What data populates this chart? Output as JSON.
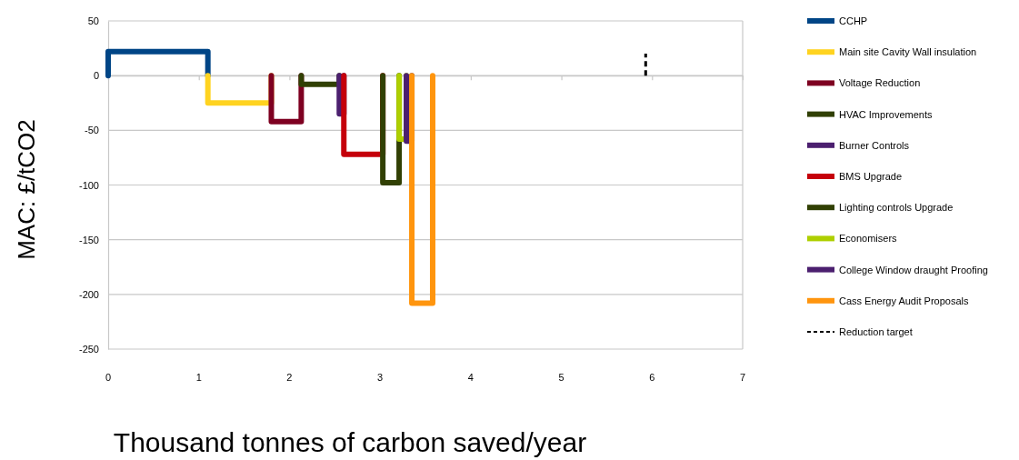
{
  "chart_data": {
    "type": "line",
    "xlabel": "Thousand tonnes of carbon saved/year",
    "ylabel": "MAC: £/tCO2",
    "xlim": [
      0,
      7
    ],
    "xticks": [
      0,
      1,
      2,
      3,
      4,
      5,
      6,
      7
    ],
    "ylim": [
      -250,
      50
    ],
    "yticks": [
      -250,
      -200,
      -150,
      -100,
      -50,
      0,
      50
    ],
    "grid": "y",
    "legend": "right",
    "line_style": "solid",
    "marker": "none",
    "series": [
      {
        "name": "CCHP",
        "color": "#004586",
        "x": [
          0,
          0,
          1.1,
          1.1
        ],
        "values": [
          0,
          22,
          22,
          0
        ]
      },
      {
        "name": "Main site Cavity Wall insulation",
        "color": "#ffd320",
        "x": [
          1.1,
          1.1,
          1.8,
          1.8
        ],
        "values": [
          0,
          -25,
          -25,
          0
        ]
      },
      {
        "name": "Voltage Reduction",
        "color": "#7e0021",
        "x": [
          1.8,
          1.8,
          2.13,
          2.13
        ],
        "values": [
          0,
          -42,
          -42,
          0
        ]
      },
      {
        "name": "HVAC Improvements",
        "color": "#314004",
        "x": [
          2.13,
          2.13,
          2.55,
          2.55
        ],
        "values": [
          0,
          -8,
          -8,
          0
        ]
      },
      {
        "name": "Burner Controls",
        "color": "#4b1f6f",
        "x": [
          2.55,
          2.55,
          2.6,
          2.6
        ],
        "values": [
          0,
          -35,
          -35,
          0
        ]
      },
      {
        "name": "BMS Upgrade",
        "color": "#c5000b",
        "x": [
          2.6,
          2.6,
          3.03,
          3.03
        ],
        "values": [
          0,
          -72,
          -72,
          0
        ]
      },
      {
        "name": "Lighting controls Upgrade",
        "color": "#314004",
        "x": [
          3.03,
          3.03,
          3.21,
          3.21
        ],
        "values": [
          0,
          -98,
          -98,
          0
        ]
      },
      {
        "name": "Economisers",
        "color": "#aecf00",
        "x": [
          3.21,
          3.21,
          3.29,
          3.29
        ],
        "values": [
          0,
          -58,
          -58,
          0
        ]
      },
      {
        "name": "College Window draught Proofing",
        "color": "#4b1f6f",
        "x": [
          3.29,
          3.29,
          3.35,
          3.35
        ],
        "values": [
          0,
          -60,
          -60,
          0
        ]
      },
      {
        "name": "Cass Energy Audit Proposals",
        "color": "#ff950e",
        "x": [
          3.35,
          3.35,
          3.58,
          3.58
        ],
        "values": [
          0,
          -208,
          -208,
          0
        ]
      },
      {
        "name": "Reduction target",
        "color": "#000000",
        "line_style": "dashed",
        "x": [
          5.93,
          5.93
        ],
        "values": [
          0,
          20
        ]
      }
    ]
  }
}
